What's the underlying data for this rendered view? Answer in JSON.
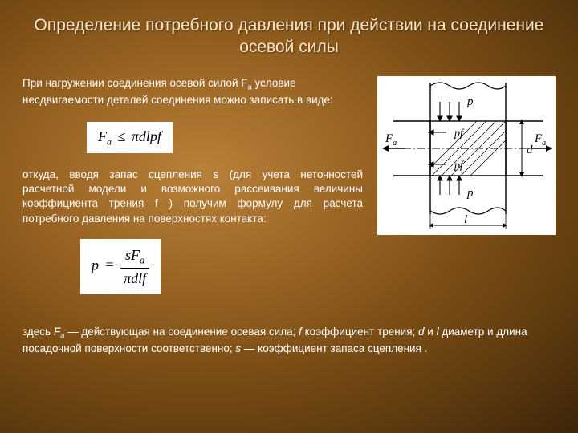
{
  "title": "Определение потребного давления  при действии на соединение осевой силы",
  "para1_prefix": "При нагружении соединения осевой силой F",
  "para1_sub": "a",
  "para1_suffix": "  условие несдвигаемости деталей соединения можно записать в виде:",
  "formula1": {
    "lhs": "F",
    "lhs_sub": "a",
    "rel": "≤",
    "rhs": "πdlpf"
  },
  "para2": "откуда, вводя запас сцепления s (для учета неточностей расчетной модели и возможного рассеивания величины коэффициента трения f ) получим формулу для расчета потребного давления на поверхностях контакта:",
  "formula2": {
    "lhs": "p",
    "num_a": "sF",
    "num_sub": "a",
    "den": "πdlf"
  },
  "footer_html": "здесь <i>F<sub>a</sub></i> — действующая на соединение осевая сила; <i>f</i>  коэффициент трения; <i>d</i> и <i>l</i> диаметр и длина посадочной поверхности соответственно; <i>s</i> — коэффициент запаса сцепления .",
  "diagram": {
    "labels": {
      "p": "p",
      "pf": "pf",
      "Fa": "F",
      "Fa_sub": "a",
      "l": "l",
      "d": "d"
    },
    "colors": {
      "stroke": "#000000",
      "bg": "#ffffff",
      "hatch": "#000000"
    }
  }
}
